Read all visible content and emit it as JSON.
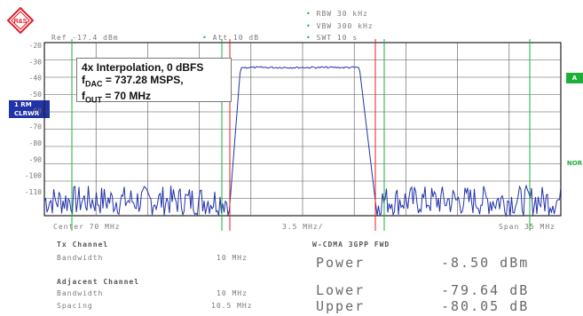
{
  "logo_text": "R&S",
  "header": {
    "rbw": "RBW 30 kHz",
    "vbw": "VBW 300 kHz",
    "swt": "SWT 10 s",
    "ref": "Ref -17.4 dBm",
    "att": "Att  10 dB"
  },
  "side": {
    "trace_label": "1 RM",
    "clrwr_label": "CLRWR",
    "a_label": "A",
    "nor_label": "NOR"
  },
  "annotation": {
    "line1": "4x Interpolation, 0 dBFS",
    "line2_main": "f",
    "line2_sub": "DAC",
    "line2_rest": " = 737.28 MSPS,",
    "line3_main": "f",
    "line3_sub": "OUT",
    "line3_rest": " = 70 MHz"
  },
  "y_ticks": [
    "-20",
    "-30",
    "-40",
    "-50",
    "-60",
    "-70",
    "-80",
    "-90",
    "-100",
    "-110"
  ],
  "footer": {
    "center": "Center 70 MHz",
    "div": "3.5 MHz/",
    "span": "Span 35 MHz"
  },
  "table": {
    "tx_channel": "Tx Channel",
    "bandwidth_label": "Bandwidth",
    "bandwidth_value": "10 MHz",
    "adjacent_channel": "Adjacent Channel",
    "adj_bandwidth_label": "Bandwidth",
    "adj_bandwidth_value": "10 MHz",
    "spacing_label": "Spacing",
    "spacing_value": "10.5 MHz",
    "standard": "W-CDMA 3GPP FWD",
    "power_label": "Power",
    "power_value": "-8.50 dBm",
    "lower_label": "Lower",
    "lower_value": "-79.64 dB",
    "upper_label": "Upper",
    "upper_value": "-80.05 dB"
  },
  "colors": {
    "trace": "#2233aa",
    "grid": "#333333",
    "green_marker": "#1fae3a",
    "red_marker": "#e02020",
    "logo": "#e0202a"
  }
}
